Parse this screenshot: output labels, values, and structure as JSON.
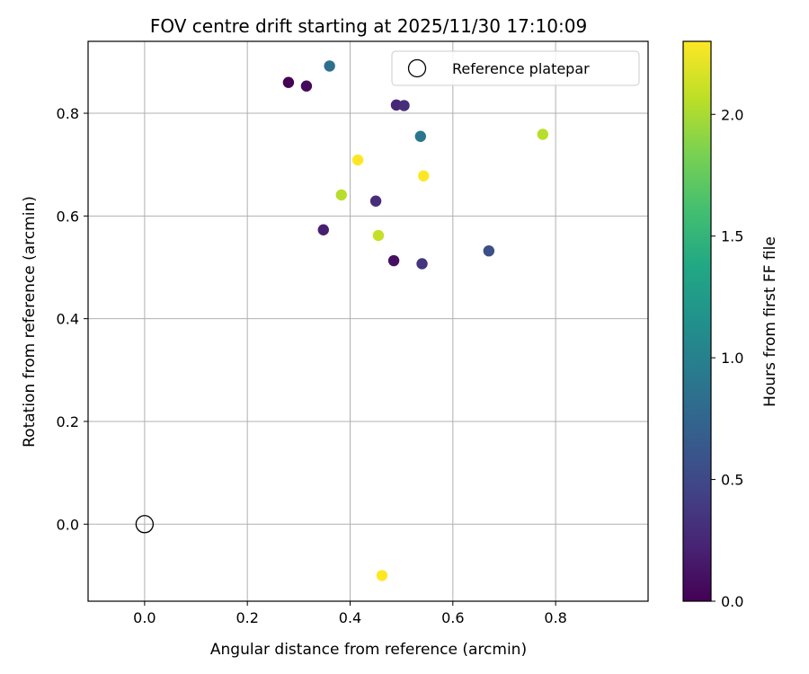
{
  "chart_data": {
    "type": "scatter",
    "title": "FOV centre drift starting at 2025/11/30 17:10:09",
    "xlabel": "Angular distance from reference (arcmin)",
    "ylabel": "Rotation from reference (arcmin)",
    "xlim": [
      -0.11,
      0.98
    ],
    "ylim": [
      -0.15,
      0.94
    ],
    "xticks": [
      0.0,
      0.2,
      0.4,
      0.6,
      0.8
    ],
    "xtick_labels": [
      "0.0",
      "0.2",
      "0.4",
      "0.6",
      "0.8"
    ],
    "yticks": [
      0.0,
      0.2,
      0.4,
      0.6,
      0.8
    ],
    "ytick_labels": [
      "0.0",
      "0.2",
      "0.4",
      "0.6",
      "0.8"
    ],
    "grid": true,
    "legend": {
      "placement": "top-right",
      "entries": [
        "Reference platepar"
      ]
    },
    "reference_point": {
      "x": 0.0,
      "y": 0.0
    },
    "colorbar": {
      "label": "Hours from first FF file",
      "colormap": "viridis",
      "range": [
        0.0,
        2.3
      ],
      "ticks": [
        0.0,
        0.5,
        1.0,
        1.5,
        2.0
      ],
      "tick_labels": [
        "0.0",
        "0.5",
        "1.0",
        "1.5",
        "2.0"
      ]
    },
    "points": [
      {
        "x": 0.28,
        "y": 0.86,
        "c": 0.0
      },
      {
        "x": 0.315,
        "y": 0.853,
        "c": 0.05
      },
      {
        "x": 0.485,
        "y": 0.513,
        "c": 0.1
      },
      {
        "x": 0.348,
        "y": 0.573,
        "c": 0.2
      },
      {
        "x": 0.49,
        "y": 0.816,
        "c": 0.25
      },
      {
        "x": 0.505,
        "y": 0.815,
        "c": 0.3
      },
      {
        "x": 0.45,
        "y": 0.629,
        "c": 0.3
      },
      {
        "x": 0.54,
        "y": 0.507,
        "c": 0.35
      },
      {
        "x": 0.67,
        "y": 0.532,
        "c": 0.55
      },
      {
        "x": 0.36,
        "y": 0.892,
        "c": 0.85
      },
      {
        "x": 0.537,
        "y": 0.755,
        "c": 0.9
      },
      {
        "x": 0.775,
        "y": 0.759,
        "c": 2.05
      },
      {
        "x": 0.383,
        "y": 0.641,
        "c": 2.05
      },
      {
        "x": 0.455,
        "y": 0.562,
        "c": 2.1
      },
      {
        "x": 0.415,
        "y": 0.709,
        "c": 2.3
      },
      {
        "x": 0.543,
        "y": 0.678,
        "c": 2.3
      },
      {
        "x": 0.462,
        "y": -0.1,
        "c": 2.3
      }
    ]
  }
}
